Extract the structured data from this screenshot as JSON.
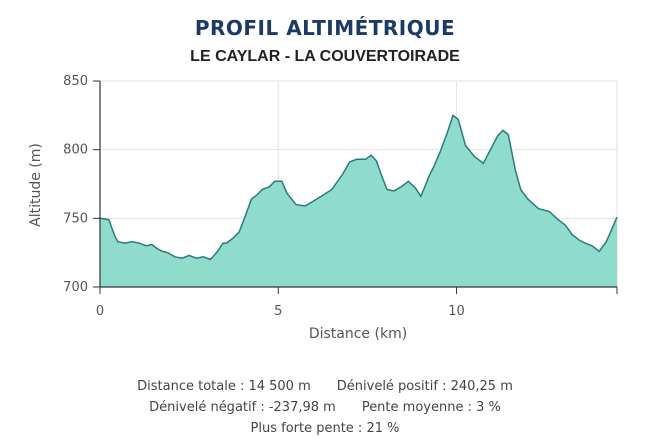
{
  "chart_data": {
    "type": "area",
    "title": "PROFIL ALTIMÉTRIQUE",
    "subtitle": "LE CAYLAR - LA COUVERTOIRADE",
    "xlabel": "Distance (km)",
    "ylabel": "Altitude (m)",
    "xlim": [
      0,
      14.5
    ],
    "ylim": [
      700,
      850
    ],
    "xticks": [
      "0",
      "5",
      "10"
    ],
    "yticks": [
      "700",
      "750",
      "800",
      "850"
    ],
    "grid": true,
    "fill_color": "#8fdccc",
    "line_color": "#2a7a80",
    "x": [
      0,
      0.25,
      0.4,
      0.5,
      0.7,
      0.9,
      1.1,
      1.3,
      1.45,
      1.6,
      1.75,
      1.9,
      2.1,
      2.3,
      2.5,
      2.7,
      2.9,
      3.1,
      3.3,
      3.45,
      3.55,
      3.75,
      3.9,
      4.05,
      4.25,
      4.4,
      4.55,
      4.75,
      4.9,
      5.1,
      5.25,
      5.5,
      5.75,
      5.95,
      6.2,
      6.5,
      6.8,
      7.0,
      7.2,
      7.45,
      7.6,
      7.75,
      7.9,
      8.05,
      8.25,
      8.45,
      8.65,
      8.85,
      9.0,
      9.25,
      9.35,
      9.55,
      9.75,
      9.9,
      10.05,
      10.25,
      10.5,
      10.75,
      10.95,
      11.15,
      11.3,
      11.45,
      11.65,
      11.8,
      12.0,
      12.3,
      12.6,
      12.85,
      13.05,
      13.25,
      13.45,
      13.6,
      13.8,
      14.0,
      14.2,
      14.35,
      14.5
    ],
    "y": [
      750,
      749,
      738,
      733,
      732,
      733,
      732,
      730,
      731,
      728,
      726,
      725,
      722,
      721,
      723,
      721,
      722,
      720,
      726,
      732,
      732,
      736,
      740,
      750,
      764,
      767,
      771,
      773,
      777,
      777,
      768,
      760,
      759,
      762,
      766,
      771,
      782,
      791,
      793,
      793,
      796,
      792,
      781,
      771,
      770,
      773,
      777,
      772,
      766,
      782,
      787,
      799,
      813,
      825,
      822,
      803,
      795,
      790,
      800,
      810,
      814,
      811,
      785,
      771,
      764,
      757,
      755,
      749,
      745,
      738,
      734,
      732,
      730,
      726,
      733,
      742,
      751
    ]
  },
  "stats": {
    "distance": "Distance totale :  14 500 m",
    "denivele_positif": "Dénivelé positif : 240,25 m",
    "denivele_negatif": "Dénivelé négatif : -237,98 m",
    "pente_moyenne": "Pente moyenne : 3 %",
    "plus_forte_pente": "Plus forte pente : 21 %"
  }
}
